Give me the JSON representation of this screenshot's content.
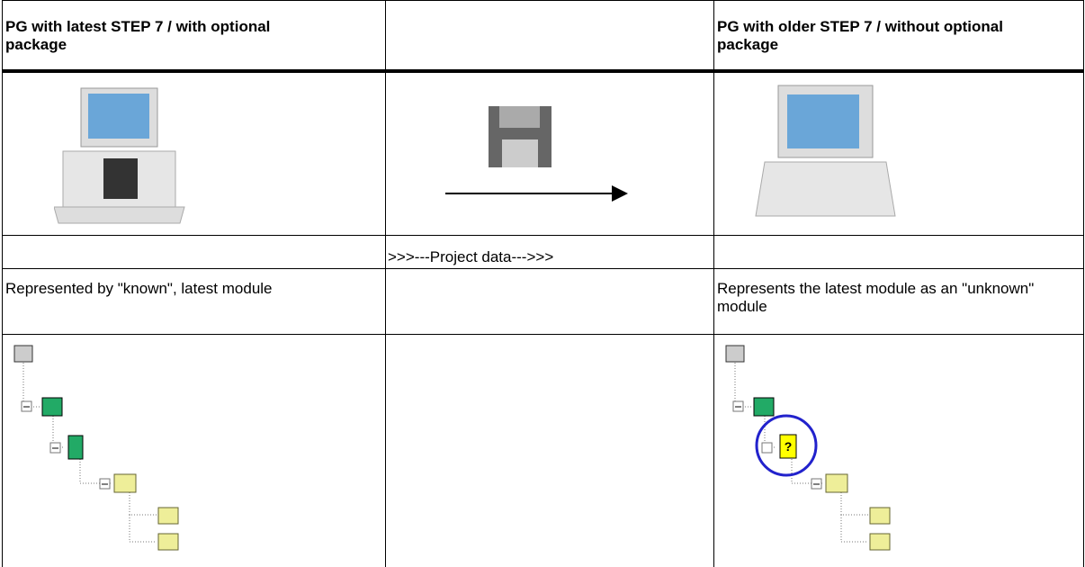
{
  "table": {
    "header": {
      "left": "PG with latest STEP 7 / with optional package",
      "right": "PG with older STEP 7 / without optional package"
    },
    "transfer_label": ">>>---Project data--->>>",
    "notes": {
      "left": "Represented by \"known\", latest module",
      "right": "Represents the latest module as an \"unknown\" module"
    }
  }
}
